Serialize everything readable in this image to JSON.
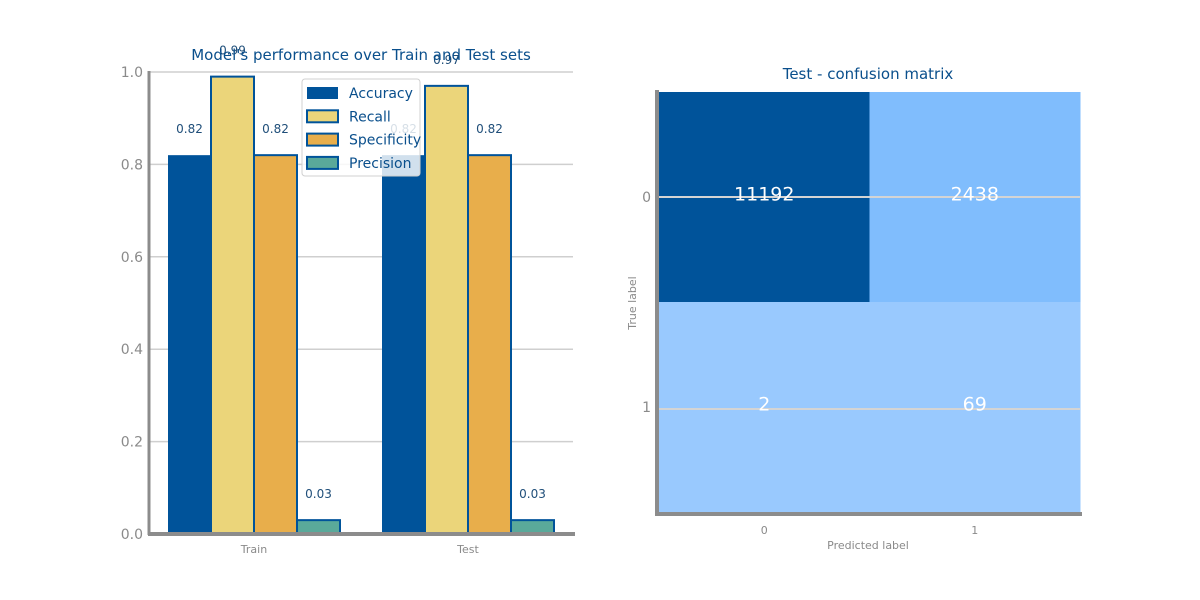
{
  "chart_data": [
    {
      "type": "bar",
      "title": "Model's performance over Train and Test sets",
      "categories": [
        "Train",
        "Test"
      ],
      "series": [
        {
          "name": "Accuracy",
          "values": [
            0.82,
            0.82
          ],
          "color": "#00539a",
          "labels": [
            "0.82",
            "0.82"
          ]
        },
        {
          "name": "Recall",
          "values": [
            0.99,
            0.97
          ],
          "color": "#ebd57a",
          "labels": [
            "0.99",
            "0.97"
          ]
        },
        {
          "name": "Specificity",
          "values": [
            0.82,
            0.82
          ],
          "color": "#e8ae4b",
          "labels": [
            "0.82",
            "0.82"
          ]
        },
        {
          "name": "Precision",
          "values": [
            0.03,
            0.03
          ],
          "color": "#5aa99a",
          "labels": [
            "0.03",
            "0.03"
          ]
        }
      ],
      "ylim": [
        0,
        1
      ],
      "yticks": [
        "0.0",
        "0.2",
        "0.4",
        "0.6",
        "0.8",
        "1.0"
      ],
      "grid": true,
      "legend": "upper center"
    },
    {
      "type": "heatmap",
      "title": "Test - confusion matrix",
      "xlabel": "Predicted label",
      "ylabel": "True label",
      "x_categories": [
        "0",
        "1"
      ],
      "y_categories": [
        "0",
        "1"
      ],
      "matrix": [
        [
          11192,
          2438
        ],
        [
          2,
          69
        ]
      ],
      "labels": [
        [
          "11192",
          "2438"
        ],
        [
          "2",
          "69"
        ]
      ],
      "colors": [
        [
          "#00539a",
          "#80bdfd"
        ],
        [
          "#99c9fe",
          "#99c9fe"
        ]
      ]
    }
  ]
}
